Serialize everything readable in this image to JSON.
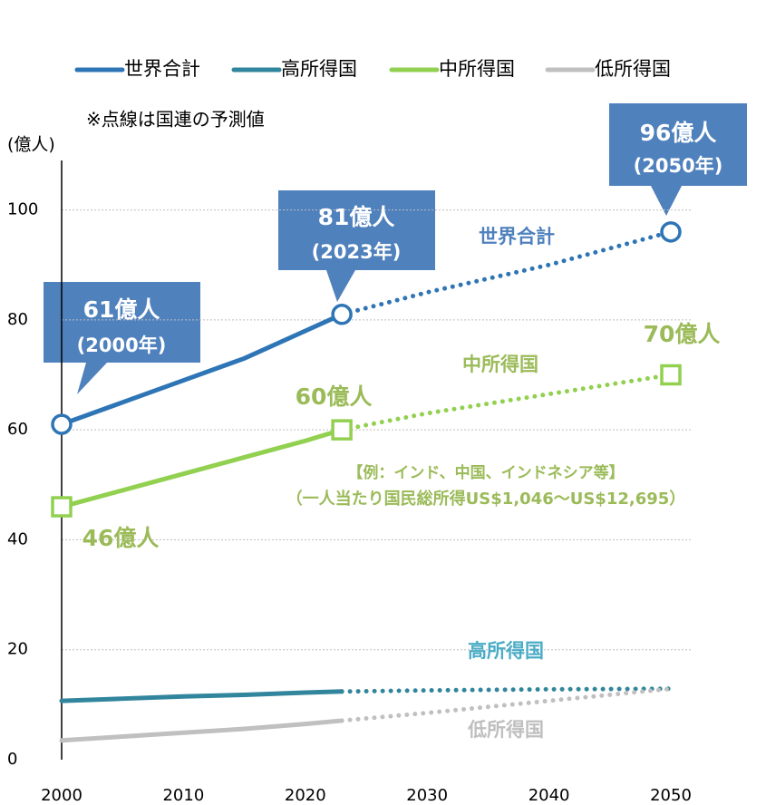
{
  "chart_data": {
    "type": "line",
    "subtitle": "※点線は国連の予測値",
    "ylabel": "(億人)",
    "x": [
      2000,
      2005,
      2010,
      2015,
      2020,
      2023,
      2030,
      2040,
      2050
    ],
    "forecast_from": 2023,
    "xlim": [
      2000,
      2050
    ],
    "xticks": [
      2000,
      2010,
      2020,
      2030,
      2040,
      2050
    ],
    "ylim": [
      0,
      109
    ],
    "yticks": [
      0,
      20,
      40,
      60,
      80,
      100
    ],
    "grid": true,
    "legend": "top",
    "series": [
      {
        "name": "世界合計",
        "color": "#2e75b6",
        "label_color": "#4f81bd",
        "marker": "circle",
        "values": [
          61,
          65,
          69,
          73,
          78,
          81,
          85,
          90,
          96
        ],
        "value_labels": [
          "61億人",
          null,
          null,
          null,
          null,
          "81億人",
          null,
          null,
          "96億人"
        ],
        "year_labels": [
          "(2000年)",
          null,
          null,
          null,
          null,
          "(2023年)",
          null,
          null,
          "(2050年)"
        ]
      },
      {
        "name": "高所得国",
        "color": "#31859c",
        "label_color": "#4bacc6",
        "values": [
          10.7,
          11.1,
          11.5,
          11.8,
          12.2,
          12.4,
          12.6,
          12.8,
          12.9
        ]
      },
      {
        "name": "中所得国",
        "color": "#92d050",
        "label_color": "#9bbb59",
        "marker": "square",
        "values": [
          46,
          49,
          52,
          55,
          58,
          60,
          63,
          66.5,
          70
        ],
        "value_labels": [
          "46億人",
          null,
          null,
          null,
          null,
          "60億人",
          null,
          null,
          "70億人"
        ]
      },
      {
        "name": "低所得国",
        "color": "#c0c0c0",
        "label_color": "#bfbfbf",
        "values": [
          3.5,
          4.2,
          4.9,
          5.6,
          6.5,
          7.1,
          8.5,
          10.7,
          12.9
        ]
      }
    ],
    "notes": [
      "【例：インド、中国、インドネシア等】",
      "（一人当たり国民総所得US$1,046～US$12,695）"
    ]
  }
}
